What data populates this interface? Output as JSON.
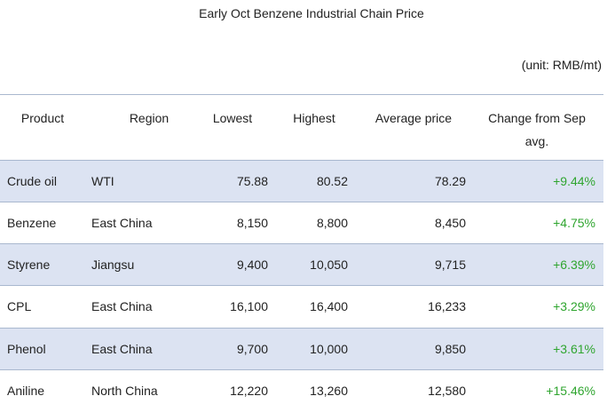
{
  "header": {
    "title": "Early Oct Benzene Industrial Chain Price",
    "unit": "(unit: RMB/mt)"
  },
  "table": {
    "columns": [
      "Product",
      "Region",
      "Lowest",
      "Highest",
      "Average price",
      "Change from Sep avg."
    ],
    "rows": [
      [
        "Crude oil",
        "WTI",
        "75.88",
        "80.52",
        "78.29",
        "+9.44%"
      ],
      [
        "Benzene",
        "East China",
        "8,150",
        "8,800",
        "8,450",
        "+4.75%"
      ],
      [
        "Styrene",
        "Jiangsu",
        "9,400",
        "10,050",
        "9,715",
        "+6.39%"
      ],
      [
        "CPL",
        "East China",
        "16,100",
        "16,400",
        "16,233",
        "+3.29%"
      ],
      [
        "Phenol",
        "East China",
        "9,700",
        "10,000",
        "9,850",
        "+3.61%"
      ],
      [
        "Aniline",
        "North China",
        "12,220",
        "13,260",
        "12,580",
        "+15.46%"
      ]
    ]
  }
}
